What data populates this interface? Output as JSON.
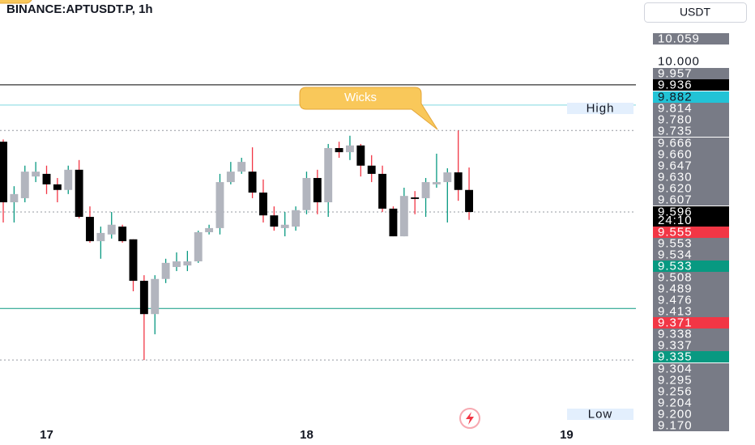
{
  "chart_data": {
    "type": "candlestick",
    "title": "BINANCE:APTUSDT.P, 1h",
    "currency": "USDT",
    "annotation": "Wicks",
    "x": [
      0,
      1,
      2,
      3,
      4,
      5,
      6,
      7,
      8,
      9,
      10,
      11,
      12,
      13,
      14,
      15,
      16,
      17,
      18,
      19,
      20,
      21,
      22,
      23,
      24,
      25,
      26,
      27,
      28,
      29,
      30,
      31,
      32,
      33,
      34,
      35,
      36,
      37,
      38,
      39,
      40,
      41,
      42,
      43
    ],
    "xlim": [
      -0.3,
      58.4
    ],
    "xticks": [
      {
        "value": 4,
        "label": "17"
      },
      {
        "value": 28,
        "label": "18"
      },
      {
        "value": 52,
        "label": "19"
      }
    ],
    "ylim": [
      9.027,
      10.163
    ],
    "open": [
      9.784,
      9.622,
      9.633,
      9.691,
      9.698,
      9.67,
      9.655,
      9.709,
      9.583,
      9.518,
      9.536,
      9.557,
      9.523,
      9.412,
      9.323,
      9.417,
      9.449,
      9.453,
      9.464,
      9.542,
      9.553,
      9.676,
      9.704,
      9.704,
      9.648,
      9.587,
      9.553,
      9.557,
      9.601,
      9.687,
      9.622,
      9.767,
      9.756,
      9.774,
      9.72,
      9.698,
      9.605,
      9.531,
      9.635,
      9.633,
      9.67,
      9.676,
      9.702,
      9.655
    ],
    "high": [
      9.79,
      9.665,
      9.72,
      9.73,
      9.72,
      9.687,
      9.72,
      9.735,
      9.611,
      9.557,
      9.596,
      9.562,
      9.523,
      9.427,
      9.427,
      9.471,
      9.488,
      9.492,
      9.546,
      9.562,
      9.698,
      9.73,
      9.741,
      9.769,
      9.683,
      9.611,
      9.596,
      9.611,
      9.704,
      9.709,
      9.778,
      9.784,
      9.8,
      9.778,
      9.748,
      9.72,
      9.611,
      9.661,
      9.652,
      9.687,
      9.752,
      9.713,
      9.814,
      9.715
    ],
    "low": [
      9.568,
      9.568,
      9.622,
      9.676,
      9.644,
      9.622,
      9.644,
      9.579,
      9.514,
      9.471,
      9.525,
      9.514,
      9.384,
      9.2,
      9.269,
      9.406,
      9.438,
      9.438,
      9.46,
      9.536,
      9.536,
      9.67,
      9.698,
      9.633,
      9.568,
      9.546,
      9.531,
      9.546,
      9.59,
      9.59,
      9.583,
      9.741,
      9.735,
      9.691,
      9.676,
      9.596,
      9.531,
      9.531,
      9.59,
      9.583,
      9.661,
      9.568,
      9.626,
      9.575
    ],
    "close": [
      9.622,
      9.644,
      9.704,
      9.704,
      9.67,
      9.655,
      9.709,
      9.583,
      9.518,
      9.54,
      9.562,
      9.518,
      9.412,
      9.323,
      9.417,
      9.46,
      9.464,
      9.464,
      9.542,
      9.553,
      9.676,
      9.704,
      9.73,
      9.648,
      9.587,
      9.557,
      9.562,
      9.601,
      9.687,
      9.622,
      9.767,
      9.756,
      9.774,
      9.72,
      9.698,
      9.605,
      9.531,
      9.639,
      9.631,
      9.676,
      9.676,
      9.702,
      9.655,
      9.596
    ],
    "up_color": "#b2b5be",
    "up_wick_color": "#089981",
    "down_color": "#000000",
    "down_wick_color": "#f23645",
    "levels": [
      {
        "value": 9.936,
        "color": "#000000",
        "style": "solid"
      },
      {
        "value": 9.882,
        "color": "#7fd6e0",
        "style": "solid"
      },
      {
        "value": 9.814,
        "color": "#9598a1",
        "style": "dotted"
      },
      {
        "value": 9.596,
        "color": "#9598a1",
        "style": "dotted"
      },
      {
        "value": 9.338,
        "color": "#089981",
        "style": "solid"
      },
      {
        "value": 9.2,
        "color": "#9598a1",
        "style": "dotted"
      }
    ],
    "price_labels": [
      {
        "text": "10.059",
        "bg": "#787b86"
      },
      {
        "text": "10.000",
        "bg": "#ffffff"
      },
      {
        "text": "9.957",
        "bg": "#787b86"
      },
      {
        "text": "9.936",
        "bg": "#000000"
      },
      {
        "text": "9.882",
        "bg": "#22c3d6"
      },
      {
        "text": "9.814",
        "bg": "#787b86",
        "tag": "High"
      },
      {
        "text": "9.780",
        "bg": "#787b86"
      },
      {
        "text": "9.735",
        "bg": "#787b86"
      },
      {
        "text": "9.666",
        "bg": "#787b86"
      },
      {
        "text": "9.660",
        "bg": "#787b86"
      },
      {
        "text": "9.647",
        "bg": "#787b86"
      },
      {
        "text": "9.630",
        "bg": "#787b86"
      },
      {
        "text": "9.620",
        "bg": "#787b86"
      },
      {
        "text": "9.607",
        "bg": "#787b86"
      },
      {
        "text": "9.596",
        "bg": "#000000",
        "countdown": "24:10"
      },
      {
        "text": "9.555",
        "bg": "#f23645"
      },
      {
        "text": "9.553",
        "bg": "#787b86"
      },
      {
        "text": "9.534",
        "bg": "#787b86"
      },
      {
        "text": "9.533",
        "bg": "#089981"
      },
      {
        "text": "9.508",
        "bg": "#787b86"
      },
      {
        "text": "9.489",
        "bg": "#787b86"
      },
      {
        "text": "9.476",
        "bg": "#787b86"
      },
      {
        "text": "9.413",
        "bg": "#787b86"
      },
      {
        "text": "9.371",
        "bg": "#f23645"
      },
      {
        "text": "9.338",
        "bg": "#787b86"
      },
      {
        "text": "9.337",
        "bg": "#787b86"
      },
      {
        "text": "9.335",
        "bg": "#089981"
      },
      {
        "text": "9.304",
        "bg": "#787b86"
      },
      {
        "text": "9.295",
        "bg": "#787b86"
      },
      {
        "text": "9.256",
        "bg": "#787b86"
      },
      {
        "text": "9.204",
        "bg": "#787b86"
      },
      {
        "text": "9.200",
        "bg": "#787b86",
        "tag": "Low"
      },
      {
        "text": "9.170",
        "bg": "#787b86"
      }
    ]
  }
}
